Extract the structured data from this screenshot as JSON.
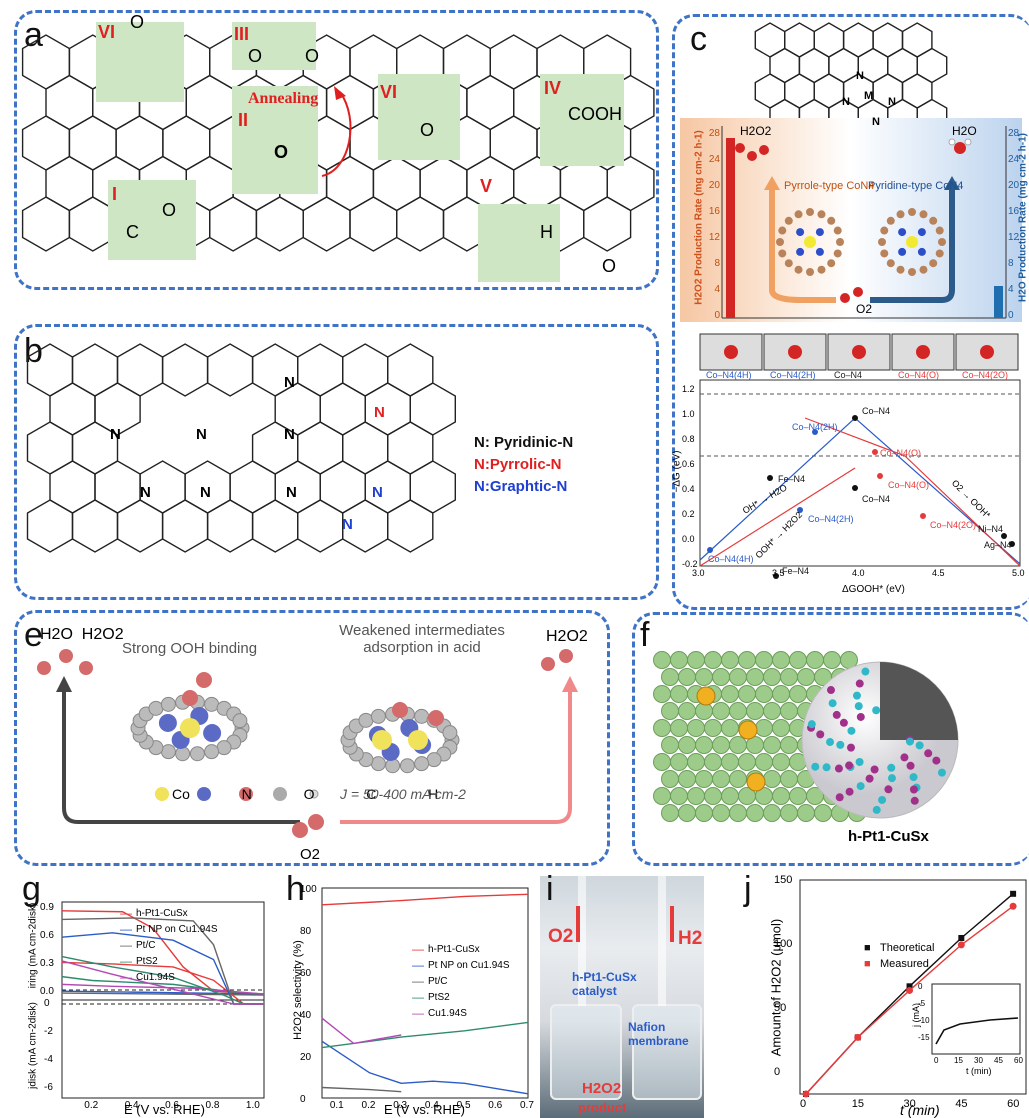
{
  "colors": {
    "dash": "#3f73c6",
    "red": "#e53b3b",
    "blue": "#2c4fc9",
    "green": "#cfe6c5",
    "gray": "#888"
  },
  "panel_a": {
    "label": "a",
    "tags": [
      "VI",
      "III",
      "VI",
      "IV",
      "II",
      "I",
      "V"
    ],
    "annealing": "Annealing",
    "o": "O",
    "cooh": "COOH",
    "h": "H",
    "c": "C"
  },
  "panel_b": {
    "label": "b",
    "n": "N",
    "legend": [
      "N: Pyridinic-N",
      "N:Pyrrolic-N",
      "N:Graphtic-N"
    ]
  },
  "panel_c": {
    "label": "c",
    "ylabel_left": "H2O2 Production Rate (mg cm-2 h-1)",
    "ylabel_right": "H2O Production Rate (mg cm-2 h-1)",
    "ticks": [
      "28",
      "24",
      "20",
      "16",
      "12",
      "8",
      "4",
      "0"
    ],
    "pyrrole": "Pyrrole-type CoN4",
    "pyridine": "Pyridine-type CoN4",
    "h2o2": "H2O2",
    "h2o": "H2O",
    "o2": "O2",
    "m": "M",
    "n": "N"
  },
  "panel_d": {
    "label": "d",
    "top_labels": [
      "Co–N4(4H)",
      "Co–N4(2H)",
      "Co–N4",
      "Co–N4(O)",
      "Co–N4(2O)"
    ],
    "ylabel": "−ΔG (eV)",
    "xlabel": "ΔGOOH* (eV)",
    "yticks": [
      "1.2",
      "1.0",
      "0.8",
      "0.6",
      "0.4",
      "0.2",
      "0.0",
      "-0.2"
    ],
    "xticks": [
      "3.0",
      "3.5",
      "4.0",
      "4.5",
      "5.0"
    ],
    "points": [
      "Co–N4",
      "Co–N4(2H)",
      "Co–N4(O)",
      "Fe–N4",
      "Co–N4(4H)",
      "Co–N4",
      "Co–N4(O)",
      "Co–N4(2H)",
      "Co–N4(2O)",
      "Ni–N4",
      "Ag–N4",
      "Fe–N4"
    ],
    "lines": [
      "OH* → H2O",
      "OOH* → H2O2",
      "O2 → OOH*"
    ]
  },
  "panel_e": {
    "label": "e",
    "left_top": "H2O  H2O2",
    "strong": "Strong OOH binding",
    "weak": "Weakened intermediates adsorption in acid",
    "right_top": "H2O2",
    "legend": "Co  N  O  C  H",
    "j": "J = 50-400 mA cm-2",
    "o2": "O2"
  },
  "panel_f": {
    "label": "f",
    "caption": "h-Pt1-CuSx"
  },
  "panel_g": {
    "label": "g",
    "y1": "iring (mA cm-2disk)",
    "y2": "jdisk (mA cm-2disk)",
    "x": "E (V vs. RHE)",
    "y1ticks": [
      "0.9",
      "0.6",
      "0.3",
      "0.0"
    ],
    "y2ticks": [
      "0",
      "-2",
      "-4",
      "-6"
    ],
    "xticks": [
      "0.2",
      "0.4",
      "0.6",
      "0.8",
      "1.0"
    ],
    "legend": [
      "h-Pt1-CuSx",
      "Pt NP on Cu1.94S",
      "Pt/C",
      "PtS2",
      "Cu1.94S"
    ]
  },
  "panel_h": {
    "label": "h",
    "y": "H2O2 selectivity (%)",
    "x": "E (V vs. RHE)",
    "yticks": [
      "100",
      "80",
      "60",
      "40",
      "20",
      "0"
    ],
    "xticks": [
      "0.1",
      "0.2",
      "0.3",
      "0.4",
      "0.5",
      "0.6",
      "0.7"
    ],
    "legend": [
      "h-Pt1-CuSx",
      "Pt NP on Cu1.94S",
      "Pt/C",
      "PtS2",
      "Cu1.94S"
    ]
  },
  "panel_i": {
    "label": "i",
    "o2": "O2",
    "h2": "H2",
    "catalyst": "h-Pt1-CuSx catalyst",
    "membrane": "Nafion membrane",
    "h2o2": "H2O2",
    "product": "product"
  },
  "panel_j": {
    "label": "j",
    "y": "Amount of H2O2 (μmol)",
    "x": "t (min)",
    "yticks": [
      "150",
      "100",
      "50",
      "0"
    ],
    "xticks": [
      "0",
      "15",
      "30",
      "45",
      "60"
    ],
    "legend": [
      "Theoretical",
      "Measured"
    ],
    "inset": {
      "y": "j (mA)",
      "x": "t (min)",
      "yticks": [
        "0",
        "-5",
        "-10",
        "-15"
      ],
      "xticks": [
        "0",
        "15",
        "30",
        "45",
        "60"
      ]
    }
  },
  "chart_data": [
    {
      "type": "line",
      "title": "",
      "xlabel": "E (V vs. RHE)",
      "ylabel": "H2O2 selectivity (%)",
      "xlim": [
        0.05,
        0.7
      ],
      "ylim": [
        0,
        100
      ],
      "series": [
        {
          "name": "h-Pt1-CuSx",
          "x": [
            0.05,
            0.3,
            0.5,
            0.7
          ],
          "y": [
            92,
            94,
            96,
            97
          ]
        },
        {
          "name": "Pt NP on Cu1.94S",
          "x": [
            0.05,
            0.2,
            0.3,
            0.4,
            0.5,
            0.7
          ],
          "y": [
            27,
            12,
            7,
            8,
            7,
            2
          ]
        },
        {
          "name": "Pt/C",
          "x": [
            0.05,
            0.2,
            0.3
          ],
          "y": [
            5,
            4,
            3
          ]
        },
        {
          "name": "PtS2",
          "x": [
            0.05,
            0.3,
            0.5,
            0.7
          ],
          "y": [
            24,
            29,
            32,
            36
          ]
        },
        {
          "name": "Cu1.94S",
          "x": [
            0.05,
            0.15,
            0.3
          ],
          "y": [
            38,
            26,
            30
          ]
        }
      ]
    },
    {
      "type": "line",
      "title": "",
      "xlabel": "t (min)",
      "ylabel": "Amount of H2O2 (μmol)",
      "xlim": [
        0,
        62
      ],
      "ylim": [
        0,
        150
      ],
      "series": [
        {
          "name": "Theoretical",
          "x": [
            0,
            15,
            30,
            45,
            60
          ],
          "y": [
            0,
            41,
            78,
            113,
            145
          ]
        },
        {
          "name": "Measured",
          "x": [
            0,
            15,
            30,
            45,
            60
          ],
          "y": [
            0,
            41,
            75,
            108,
            136
          ]
        }
      ]
    }
  ]
}
